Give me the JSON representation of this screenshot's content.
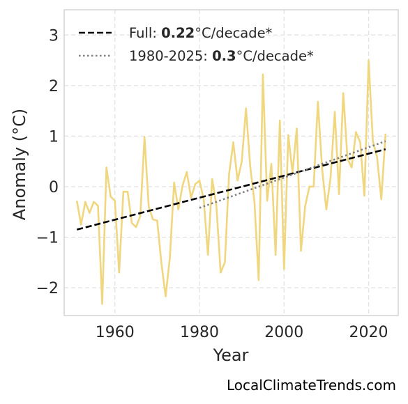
{
  "chart_data": {
    "type": "line",
    "title": "",
    "xlabel": "Year",
    "ylabel": "Anomaly (°C)",
    "xlim": [
      1948,
      2027
    ],
    "ylim": [
      -2.55,
      3.5
    ],
    "xticks": [
      1960,
      1980,
      2000,
      2020
    ],
    "yticks": [
      3,
      2,
      1,
      0,
      -1,
      -2
    ],
    "ytick_labels": [
      "3",
      "2",
      "1",
      "0",
      "−1",
      "−2"
    ],
    "grid": true,
    "legend_position": "top-left",
    "series": [
      {
        "color": "#f0d67e",
        "style": "solid",
        "x": [
          1951,
          1952,
          1953,
          1954,
          1955,
          1956,
          1957,
          1958,
          1959,
          1960,
          1961,
          1962,
          1963,
          1964,
          1965,
          1966,
          1967,
          1968,
          1969,
          1970,
          1971,
          1972,
          1973,
          1974,
          1975,
          1976,
          1977,
          1978,
          1979,
          1980,
          1981,
          1982,
          1983,
          1984,
          1985,
          1986,
          1987,
          1988,
          1989,
          1990,
          1991,
          1992,
          1993,
          1994,
          1995,
          1996,
          1997,
          1998,
          1999,
          2000,
          2001,
          2002,
          2003,
          2004,
          2005,
          2006,
          2007,
          2008,
          2009,
          2010,
          2011,
          2012,
          2013,
          2014,
          2015,
          2016,
          2017,
          2018,
          2019,
          2020,
          2021,
          2022,
          2023,
          2024
        ],
        "y": [
          -0.28,
          -0.75,
          -0.3,
          -0.52,
          -0.3,
          -0.38,
          -2.32,
          0.38,
          -0.2,
          -0.28,
          -1.7,
          -0.1,
          -0.1,
          -0.72,
          -0.8,
          -0.58,
          0.98,
          -0.4,
          -0.65,
          -0.67,
          -1.52,
          -2.17,
          -1.4,
          0.08,
          -0.45,
          0.02,
          0.29,
          -0.22,
          0.05,
          0.12,
          -0.25,
          -1.35,
          0.15,
          -0.38,
          -1.7,
          -1.5,
          0.25,
          0.88,
          0.12,
          0.5,
          1.55,
          0.4,
          -0.3,
          -1.85,
          2.22,
          -0.28,
          0.45,
          -1.35,
          1.31,
          -1.63,
          1.02,
          0.28,
          1.15,
          -1.27,
          -0.38,
          0.0,
          0.0,
          1.68,
          0.35,
          -0.45,
          0.18,
          1.48,
          -0.15,
          1.85,
          0.55,
          0.38,
          1.08,
          0.88,
          -0.18,
          2.5,
          0.9,
          0.58,
          -0.25,
          1.05
        ]
      },
      {
        "name": "Full",
        "color": "#000000",
        "style": "dashed",
        "x": [
          1951,
          2024
        ],
        "y": [
          -0.85,
          0.74
        ],
        "rate": "0.22",
        "unit": "°C/decade*"
      },
      {
        "name": "1980-2025",
        "color": "#7f7f7f",
        "style": "dotted",
        "x": [
          1980,
          2024
        ],
        "y": [
          -0.42,
          0.9
        ],
        "rate": "0.3",
        "unit": "°C/decade*"
      }
    ]
  },
  "credit": "LocalClimateTrends.com"
}
